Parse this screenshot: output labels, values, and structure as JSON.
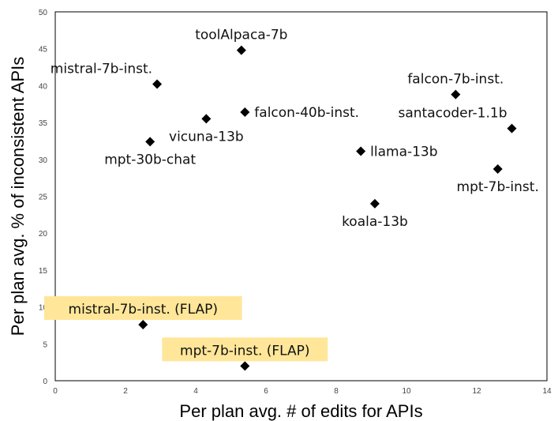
{
  "chart_data": {
    "type": "scatter",
    "title": "",
    "xlabel": "Per plan avg. # of edits for APIs",
    "ylabel": "Per plan avg. % of inconsistent APIs",
    "xlim": [
      0,
      14
    ],
    "ylim": [
      0,
      50
    ],
    "xticks": [
      0,
      2,
      4,
      6,
      8,
      10,
      12,
      14
    ],
    "yticks": [
      0,
      5,
      10,
      15,
      20,
      25,
      30,
      35,
      40,
      45,
      50
    ],
    "grid": false,
    "marker": "diamond",
    "marker_color": "#000000",
    "highlight_color": "#ffe699",
    "points": [
      {
        "label": "toolAlpaca-7b",
        "x": 5.3,
        "y": 44.8,
        "anchor": "above"
      },
      {
        "label": "mistral-7b-inst.",
        "x": 2.9,
        "y": 40.2,
        "anchor": "above-left"
      },
      {
        "label": "falcon-7b-inst.",
        "x": 11.4,
        "y": 38.8,
        "anchor": "above"
      },
      {
        "label": "falcon-40b-inst.",
        "x": 5.4,
        "y": 36.4,
        "anchor": "right"
      },
      {
        "label": "vicuna-13b",
        "x": 4.3,
        "y": 35.5,
        "anchor": "below"
      },
      {
        "label": "santacoder-1.1b",
        "x": 13.0,
        "y": 34.2,
        "anchor": "above-left"
      },
      {
        "label": "mpt-30b-chat",
        "x": 2.7,
        "y": 32.4,
        "anchor": "below"
      },
      {
        "label": "llama-13b",
        "x": 8.7,
        "y": 31.1,
        "anchor": "right"
      },
      {
        "label": "mpt-7b-inst.",
        "x": 12.6,
        "y": 28.7,
        "anchor": "below"
      },
      {
        "label": "koala-13b",
        "x": 9.1,
        "y": 24.0,
        "anchor": "below"
      },
      {
        "label": "mistral-7b-inst. (FLAP)",
        "x": 2.5,
        "y": 7.6,
        "anchor": "above",
        "highlight": true
      },
      {
        "label": "mpt-7b-inst. (FLAP)",
        "x": 5.4,
        "y": 2.0,
        "anchor": "above",
        "highlight": true
      }
    ]
  }
}
